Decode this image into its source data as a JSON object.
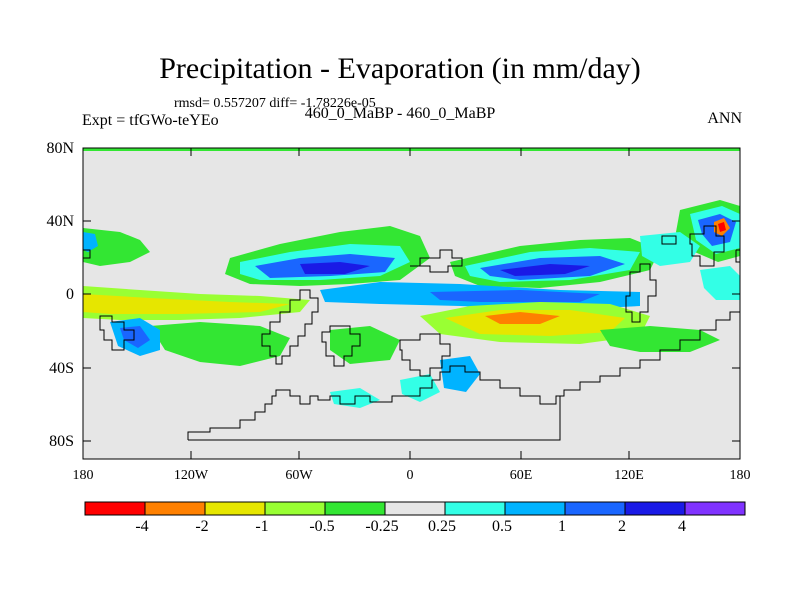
{
  "map": {
    "title": "Precipitation - Evaporation (in mm/day)",
    "stats": "rmsd= 0.557207 diff= -1.78226e-05",
    "subtitle": "460_0_MaBP - 460_0_MaBP",
    "left_label": "Expt = tfGWo-teYEo",
    "right_label": "ANN",
    "lat_labels": [
      "80N",
      "40N",
      "0",
      "40S",
      "80S"
    ],
    "lon_labels": [
      "180",
      "120W",
      "60W",
      "0",
      "60E",
      "120E",
      "180"
    ],
    "ocean_color": "#e6e6e6",
    "coast_color": "#000000"
  },
  "colorbar": {
    "colors": [
      "#ff0000",
      "#ff8000",
      "#e6e600",
      "#99ff33",
      "#33e633",
      "#e6e6e6",
      "#33ffe6",
      "#00b3ff",
      "#1a66ff",
      "#1a1ae6",
      "#8033ff"
    ],
    "labels": [
      "-4",
      "-2",
      "-1",
      "-0.5",
      "-0.25",
      "0.25",
      "0.5",
      "1",
      "2",
      "4"
    ]
  }
}
